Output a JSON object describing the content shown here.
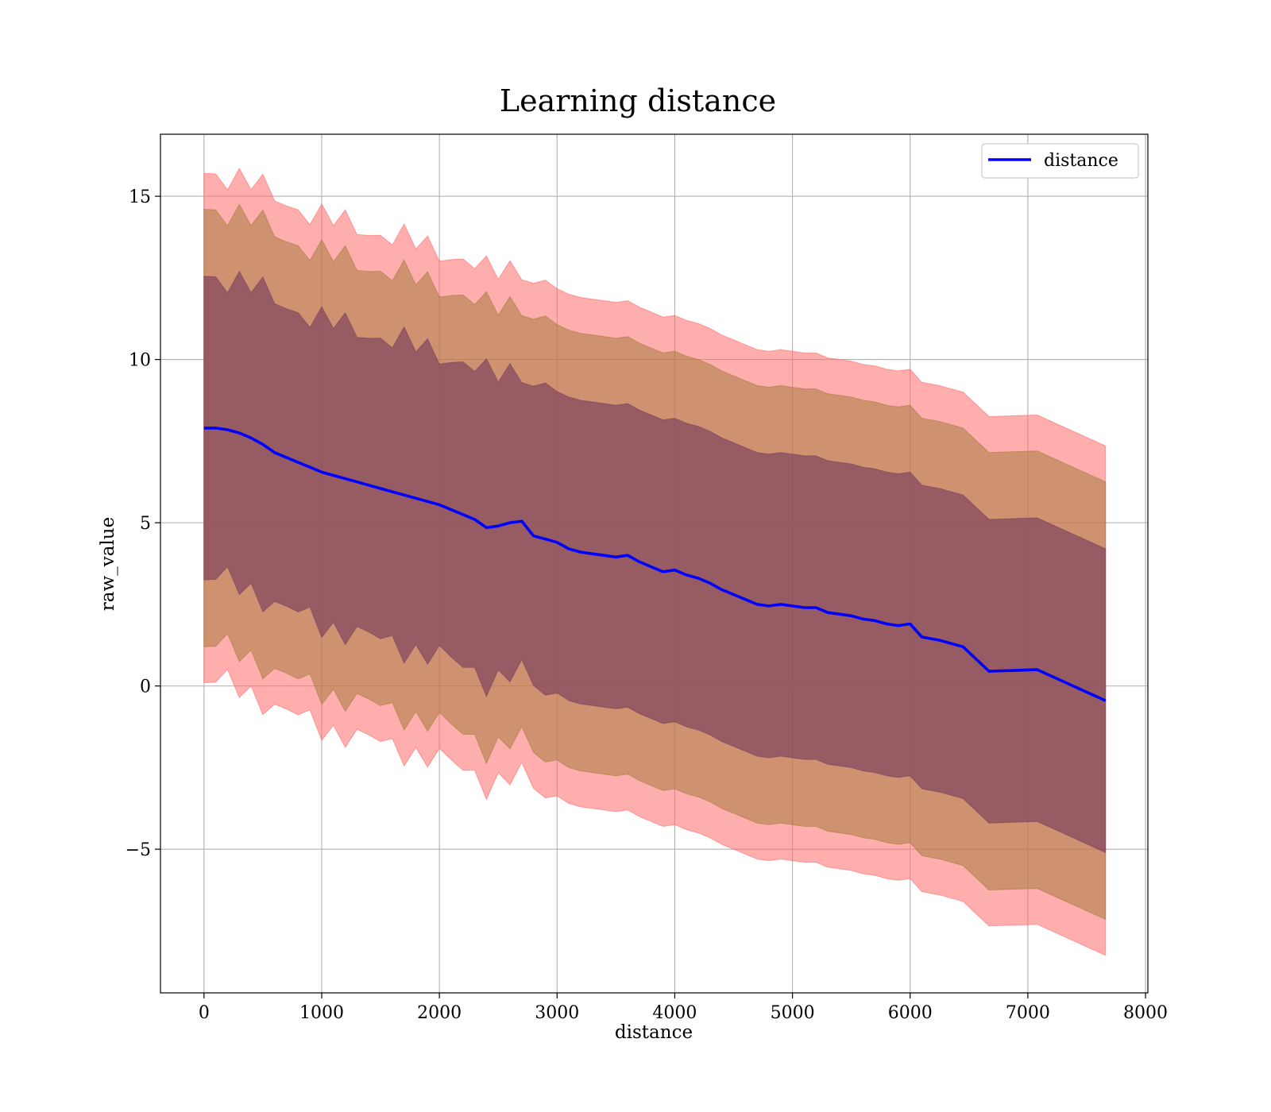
{
  "chart_data": {
    "type": "line",
    "title": "Learning distance",
    "xlabel": "distance",
    "ylabel": "raw_value",
    "xlim": [
      -370,
      8020
    ],
    "ylim": [
      -9.4,
      16.9
    ],
    "xticks": [
      0,
      1000,
      2000,
      3000,
      4000,
      5000,
      6000,
      7000,
      8000
    ],
    "yticks": [
      -5,
      0,
      5,
      10,
      15
    ],
    "grid": true,
    "legend": {
      "position": "top-right",
      "entries": [
        "distance"
      ]
    },
    "colors": {
      "line": "#0000ff",
      "band_outer": "#ff6b6b",
      "band_middle": "#a67c3f",
      "band_inner": "#7a3f5c",
      "grid": "#b0b0b0"
    },
    "series": [
      {
        "name": "distance",
        "x": [
          0,
          100,
          200,
          300,
          400,
          500,
          600,
          700,
          800,
          900,
          1000,
          1100,
          1200,
          1300,
          1400,
          1500,
          1600,
          1700,
          1800,
          1900,
          2000,
          2100,
          2200,
          2300,
          2400,
          2500,
          2600,
          2700,
          2800,
          2900,
          3000,
          3100,
          3200,
          3300,
          3400,
          3500,
          3600,
          3700,
          3800,
          3900,
          4000,
          4100,
          4200,
          4300,
          4400,
          4500,
          4600,
          4700,
          4800,
          4900,
          5000,
          5100,
          5200,
          5300,
          5400,
          5500,
          5600,
          5700,
          5800,
          5900,
          6000,
          6100,
          6250,
          6450,
          6670,
          7080,
          7660
        ],
        "y": [
          7.9,
          7.9,
          7.85,
          7.75,
          7.6,
          7.4,
          7.15,
          7.0,
          6.85,
          6.7,
          6.55,
          6.45,
          6.35,
          6.25,
          6.15,
          6.05,
          5.95,
          5.85,
          5.75,
          5.65,
          5.55,
          5.4,
          5.25,
          5.1,
          4.85,
          4.9,
          5.0,
          5.05,
          4.6,
          4.5,
          4.4,
          4.2,
          4.1,
          4.05,
          4.0,
          3.95,
          4.0,
          3.8,
          3.65,
          3.5,
          3.55,
          3.4,
          3.3,
          3.15,
          2.95,
          2.8,
          2.65,
          2.5,
          2.45,
          2.5,
          2.45,
          2.4,
          2.4,
          2.25,
          2.2,
          2.15,
          2.05,
          2.0,
          1.9,
          1.85,
          1.9,
          1.5,
          1.4,
          1.2,
          0.45,
          0.5,
          -0.45
        ]
      }
    ],
    "bands": [
      {
        "level": "outer",
        "half_width": 7.8
      },
      {
        "level": "middle",
        "half_width": 6.7
      },
      {
        "level": "inner",
        "half_width": 4.65
      }
    ]
  }
}
